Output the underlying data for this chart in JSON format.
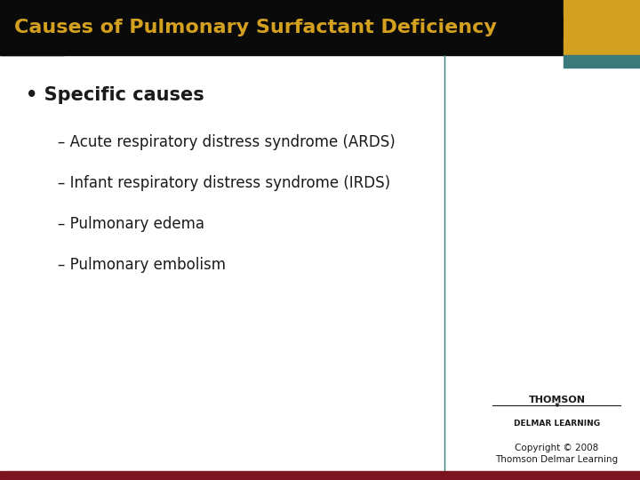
{
  "title": "Causes of Pulmonary Surfactant Deficiency",
  "title_color": "#D4A020",
  "title_bg": "#0a0a0a",
  "title_bar_height": 0.115,
  "content_bg": "#ffffff",
  "bullet_header": "Specific causes",
  "bullet_items": [
    "Acute respiratory distress syndrome (ARDS)",
    "Infant respiratory distress syndrome (IRDS)",
    "Pulmonary edema",
    "Pulmonary embolism"
  ],
  "accent_gold": "#D4A020",
  "accent_teal": "#3a7a7a",
  "vertical_line_x": 0.695,
  "bottom_bar_color": "#7a1520",
  "bottom_bar_height": 0.018,
  "copyright_text": "Copyright © 2008\nThomson Delmar Learning",
  "thomson_text": "THOMSON",
  "delmar_text": "DELMAR LEARNING"
}
